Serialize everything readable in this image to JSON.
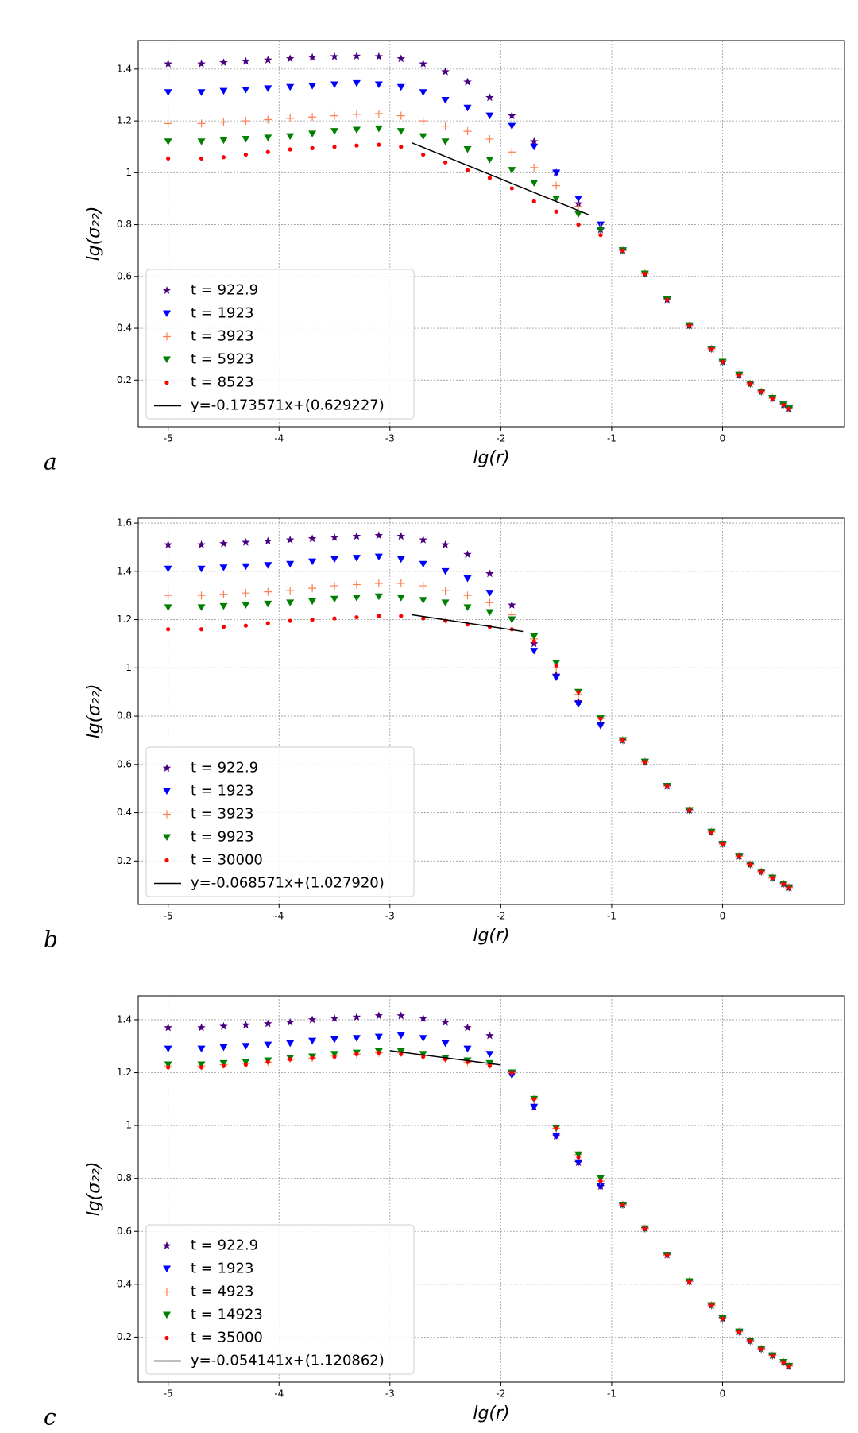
{
  "chart_data": [
    {
      "type": "scatter",
      "panel_label": "a",
      "xlabel": "lg(r)",
      "ylabel": "lg(σ₂₂)",
      "xlim": [
        -5.27,
        1.1
      ],
      "ylim": [
        0.02,
        1.51
      ],
      "xticks": [
        -5,
        -4,
        -3,
        -2,
        -1,
        0
      ],
      "yticks": [
        0.2,
        0.4,
        0.6,
        0.8,
        1.0,
        1.2,
        1.4
      ],
      "grid": true,
      "legend": "lower left",
      "x": [
        -5,
        -4.7,
        -4.5,
        -4.3,
        -4.1,
        -3.9,
        -3.7,
        -3.5,
        -3.3,
        -3.1,
        -2.9,
        -2.7,
        -2.5,
        -2.3,
        -2.1,
        -1.9,
        -1.7,
        -1.5,
        -1.3,
        -1.1,
        -0.9,
        -0.7,
        -0.5,
        -0.3,
        -0.1,
        0,
        0.15,
        0.25,
        0.35,
        0.45,
        0.55,
        0.6
      ],
      "series": [
        {
          "name": "t = 922.9",
          "color": "#4b0082",
          "marker": "star",
          "values": [
            1.42,
            1.42,
            1.425,
            1.43,
            1.435,
            1.44,
            1.445,
            1.448,
            1.45,
            1.448,
            1.44,
            1.42,
            1.39,
            1.35,
            1.29,
            1.22,
            1.12,
            1.0,
            0.88,
            0.78,
            0.7,
            0.61,
            0.51,
            0.41,
            0.32,
            0.27,
            0.22,
            0.185,
            0.155,
            0.13,
            0.105,
            0.09
          ]
        },
        {
          "name": "t = 1923",
          "color": "#0000ff",
          "marker": "triangle-down",
          "values": [
            1.31,
            1.31,
            1.315,
            1.32,
            1.325,
            1.33,
            1.335,
            1.34,
            1.345,
            1.34,
            1.33,
            1.31,
            1.28,
            1.25,
            1.22,
            1.18,
            1.1,
            1.0,
            0.9,
            0.8,
            0.7,
            0.61,
            0.51,
            0.41,
            0.32,
            0.27,
            0.22,
            0.185,
            0.155,
            0.13,
            0.105,
            0.09
          ]
        },
        {
          "name": "t = 3923",
          "color": "#ff7f50",
          "marker": "plus",
          "values": [
            1.19,
            1.19,
            1.195,
            1.2,
            1.205,
            1.21,
            1.215,
            1.22,
            1.225,
            1.228,
            1.22,
            1.2,
            1.18,
            1.16,
            1.13,
            1.08,
            1.02,
            0.95,
            0.87,
            0.79,
            0.7,
            0.61,
            0.51,
            0.41,
            0.32,
            0.27,
            0.22,
            0.185,
            0.155,
            0.13,
            0.105,
            0.09
          ]
        },
        {
          "name": "t = 5923",
          "color": "#008000",
          "marker": "triangle-down",
          "values": [
            1.12,
            1.12,
            1.125,
            1.13,
            1.135,
            1.14,
            1.15,
            1.16,
            1.165,
            1.17,
            1.16,
            1.14,
            1.12,
            1.09,
            1.05,
            1.01,
            0.96,
            0.9,
            0.84,
            0.78,
            0.7,
            0.61,
            0.51,
            0.41,
            0.32,
            0.27,
            0.22,
            0.185,
            0.155,
            0.13,
            0.105,
            0.09
          ]
        },
        {
          "name": "t = 8523",
          "color": "#ff0000",
          "marker": "circle",
          "values": [
            1.055,
            1.055,
            1.06,
            1.07,
            1.08,
            1.09,
            1.095,
            1.1,
            1.105,
            1.108,
            1.1,
            1.07,
            1.04,
            1.01,
            0.98,
            0.94,
            0.89,
            0.85,
            0.8,
            0.76,
            0.7,
            0.61,
            0.51,
            0.41,
            0.32,
            0.27,
            0.22,
            0.185,
            0.155,
            0.13,
            0.105,
            0.09
          ]
        }
      ],
      "fit": {
        "name": "y=-0.173571x+(0.629227)",
        "color": "#000000",
        "x": [
          -2.8,
          -1.2
        ],
        "values": [
          1.115,
          0.837
        ]
      }
    },
    {
      "type": "scatter",
      "panel_label": "b",
      "xlabel": "lg(r)",
      "ylabel": "lg(σ₂₂)",
      "xlim": [
        -5.27,
        1.1
      ],
      "ylim": [
        0.02,
        1.62
      ],
      "xticks": [
        -5,
        -4,
        -3,
        -2,
        -1,
        0
      ],
      "yticks": [
        0.2,
        0.4,
        0.6,
        0.8,
        1.0,
        1.2,
        1.4,
        1.6
      ],
      "grid": true,
      "legend": "lower left",
      "x": [
        -5,
        -4.7,
        -4.5,
        -4.3,
        -4.1,
        -3.9,
        -3.7,
        -3.5,
        -3.3,
        -3.1,
        -2.9,
        -2.7,
        -2.5,
        -2.3,
        -2.1,
        -1.9,
        -1.7,
        -1.5,
        -1.3,
        -1.1,
        -0.9,
        -0.7,
        -0.5,
        -0.3,
        -0.1,
        0,
        0.15,
        0.25,
        0.35,
        0.45,
        0.55,
        0.6
      ],
      "series": [
        {
          "name": "t = 922.9",
          "color": "#4b0082",
          "marker": "star",
          "values": [
            1.51,
            1.51,
            1.515,
            1.52,
            1.525,
            1.53,
            1.535,
            1.54,
            1.545,
            1.548,
            1.545,
            1.53,
            1.51,
            1.47,
            1.39,
            1.26,
            1.1,
            0.97,
            0.86,
            0.77,
            0.7,
            0.61,
            0.51,
            0.41,
            0.32,
            0.27,
            0.22,
            0.185,
            0.155,
            0.13,
            0.105,
            0.09
          ]
        },
        {
          "name": "t = 1923",
          "color": "#0000ff",
          "marker": "triangle-down",
          "values": [
            1.41,
            1.41,
            1.415,
            1.42,
            1.425,
            1.43,
            1.44,
            1.45,
            1.455,
            1.46,
            1.45,
            1.43,
            1.4,
            1.37,
            1.31,
            1.2,
            1.07,
            0.96,
            0.85,
            0.76,
            0.7,
            0.61,
            0.51,
            0.41,
            0.32,
            0.27,
            0.22,
            0.185,
            0.155,
            0.13,
            0.105,
            0.09
          ]
        },
        {
          "name": "t = 3923",
          "color": "#ff7f50",
          "marker": "plus",
          "values": [
            1.3,
            1.3,
            1.305,
            1.31,
            1.315,
            1.32,
            1.33,
            1.34,
            1.345,
            1.35,
            1.35,
            1.34,
            1.32,
            1.3,
            1.27,
            1.22,
            1.12,
            1.0,
            0.89,
            0.79,
            0.7,
            0.61,
            0.51,
            0.41,
            0.32,
            0.27,
            0.22,
            0.185,
            0.155,
            0.13,
            0.105,
            0.09
          ]
        },
        {
          "name": "t = 9923",
          "color": "#008000",
          "marker": "triangle-down",
          "values": [
            1.25,
            1.25,
            1.255,
            1.26,
            1.265,
            1.27,
            1.275,
            1.285,
            1.29,
            1.295,
            1.29,
            1.28,
            1.27,
            1.25,
            1.23,
            1.2,
            1.13,
            1.02,
            0.9,
            0.79,
            0.7,
            0.61,
            0.51,
            0.41,
            0.32,
            0.27,
            0.22,
            0.185,
            0.155,
            0.13,
            0.105,
            0.09
          ]
        },
        {
          "name": "t = 30000",
          "color": "#ff0000",
          "marker": "circle",
          "values": [
            1.16,
            1.16,
            1.17,
            1.175,
            1.185,
            1.195,
            1.2,
            1.205,
            1.21,
            1.215,
            1.215,
            1.205,
            1.195,
            1.18,
            1.17,
            1.16,
            1.11,
            1.01,
            0.9,
            0.79,
            0.7,
            0.61,
            0.51,
            0.41,
            0.32,
            0.27,
            0.22,
            0.185,
            0.155,
            0.13,
            0.105,
            0.09
          ]
        }
      ],
      "fit": {
        "name": "y=-0.068571x+(1.027920)",
        "color": "#000000",
        "x": [
          -2.8,
          -1.8
        ],
        "values": [
          1.22,
          1.151
        ]
      }
    },
    {
      "type": "scatter",
      "panel_label": "c",
      "xlabel": "lg(r)",
      "ylabel": "lg(σ₂₂)",
      "xlim": [
        -5.27,
        1.1
      ],
      "ylim": [
        0.03,
        1.49
      ],
      "xticks": [
        -5,
        -4,
        -3,
        -2,
        -1,
        0
      ],
      "yticks": [
        0.2,
        0.4,
        0.6,
        0.8,
        1.0,
        1.2,
        1.4
      ],
      "grid": true,
      "legend": "lower left",
      "x": [
        -5,
        -4.7,
        -4.5,
        -4.3,
        -4.1,
        -3.9,
        -3.7,
        -3.5,
        -3.3,
        -3.1,
        -2.9,
        -2.7,
        -2.5,
        -2.3,
        -2.1,
        -1.9,
        -1.7,
        -1.5,
        -1.3,
        -1.1,
        -0.9,
        -0.7,
        -0.5,
        -0.3,
        -0.1,
        0,
        0.15,
        0.25,
        0.35,
        0.45,
        0.55,
        0.6
      ],
      "series": [
        {
          "name": "t = 922.9",
          "color": "#4b0082",
          "marker": "star",
          "values": [
            1.37,
            1.37,
            1.375,
            1.38,
            1.385,
            1.39,
            1.4,
            1.405,
            1.41,
            1.415,
            1.415,
            1.405,
            1.39,
            1.37,
            1.34,
            1.2,
            1.07,
            0.96,
            0.86,
            0.77,
            0.7,
            0.61,
            0.51,
            0.41,
            0.32,
            0.27,
            0.22,
            0.185,
            0.155,
            0.13,
            0.105,
            0.09
          ]
        },
        {
          "name": "t = 1923",
          "color": "#0000ff",
          "marker": "triangle-down",
          "values": [
            1.29,
            1.29,
            1.295,
            1.3,
            1.305,
            1.31,
            1.32,
            1.325,
            1.33,
            1.335,
            1.34,
            1.33,
            1.31,
            1.29,
            1.27,
            1.19,
            1.07,
            0.96,
            0.86,
            0.77,
            0.7,
            0.61,
            0.51,
            0.41,
            0.32,
            0.27,
            0.22,
            0.185,
            0.155,
            0.13,
            0.105,
            0.09
          ]
        },
        {
          "name": "t = 4923",
          "color": "#ff7f50",
          "marker": "plus",
          "values": [
            1.225,
            1.225,
            1.23,
            1.235,
            1.24,
            1.25,
            1.255,
            1.265,
            1.27,
            1.275,
            1.275,
            1.265,
            1.25,
            1.24,
            1.23,
            1.2,
            1.1,
            0.99,
            0.89,
            0.79,
            0.7,
            0.61,
            0.51,
            0.41,
            0.32,
            0.27,
            0.22,
            0.185,
            0.155,
            0.13,
            0.105,
            0.09
          ]
        },
        {
          "name": "t = 14923",
          "color": "#008000",
          "marker": "triangle-down",
          "values": [
            1.23,
            1.23,
            1.235,
            1.24,
            1.245,
            1.255,
            1.26,
            1.27,
            1.275,
            1.28,
            1.28,
            1.27,
            1.255,
            1.245,
            1.235,
            1.2,
            1.1,
            0.99,
            0.89,
            0.8,
            0.7,
            0.61,
            0.51,
            0.41,
            0.32,
            0.27,
            0.22,
            0.185,
            0.155,
            0.13,
            0.105,
            0.09
          ]
        },
        {
          "name": "t = 35000",
          "color": "#ff0000",
          "marker": "circle",
          "values": [
            1.22,
            1.22,
            1.225,
            1.23,
            1.24,
            1.25,
            1.255,
            1.26,
            1.27,
            1.275,
            1.27,
            1.26,
            1.25,
            1.24,
            1.225,
            1.2,
            1.1,
            0.99,
            0.88,
            0.79,
            0.7,
            0.61,
            0.51,
            0.41,
            0.32,
            0.27,
            0.22,
            0.185,
            0.155,
            0.13,
            0.105,
            0.09
          ]
        }
      ],
      "fit": {
        "name": "y=-0.054141x+(1.120862)",
        "color": "#000000",
        "x": [
          -3,
          -2
        ],
        "values": [
          1.283,
          1.229
        ]
      }
    }
  ]
}
